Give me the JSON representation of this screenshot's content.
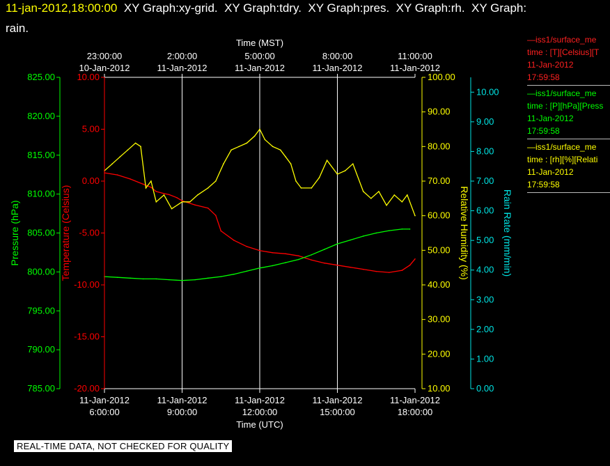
{
  "header": {
    "timestamp": "11-jan-2012,18:00:00",
    "title_rest": "  XY Graph:xy-grid.  XY Graph:tdry.  XY Graph:pres.  XY Graph:rh.  XY Graph:",
    "title_line2": "rain."
  },
  "colors": {
    "temperature": "#ff0000",
    "pressure": "#00ff00",
    "rh": "#ffff00",
    "rain": "#00e5e5",
    "grid": "#ffffff",
    "background": "#000000"
  },
  "legend": [
    {
      "color": "#ff2020",
      "lines": [
        "—iss1/surface_me",
        "time : [T][Celsius][T",
        "11-Jan-2012",
        "17:59:58"
      ]
    },
    {
      "color": "#00ff00",
      "lines": [
        "—iss1/surface_me",
        "time : [P][hPa][Press",
        "11-Jan-2012",
        "17:59:58"
      ]
    },
    {
      "color": "#ffff00",
      "lines": [
        "—iss1/surface_me",
        "time : [rh][%][Relati",
        "11-Jan-2012",
        "17:59:58"
      ]
    }
  ],
  "notice": "REAL-TIME DATA, NOT CHECKED FOR QUALITY",
  "chart_data": {
    "type": "line",
    "grid": true,
    "x_top_label": "Time (MST)",
    "x_bottom_label": "Time (UTC)",
    "x_range_utc_hours": [
      6,
      18
    ],
    "x_top_ticks": [
      {
        "time": "23:00:00",
        "date": "10-Jan-2012"
      },
      {
        "time": "2:00:00",
        "date": "11-Jan-2012"
      },
      {
        "time": "5:00:00",
        "date": "11-Jan-2012"
      },
      {
        "time": "8:00:00",
        "date": "11-Jan-2012"
      },
      {
        "time": "11:00:00",
        "date": "11-Jan-2012"
      }
    ],
    "x_bottom_ticks": [
      {
        "date": "11-Jan-2012",
        "time": "6:00:00"
      },
      {
        "date": "11-Jan-2012",
        "time": "9:00:00"
      },
      {
        "date": "11-Jan-2012",
        "time": "12:00:00"
      },
      {
        "date": "11-Jan-2012",
        "time": "15:00:00"
      },
      {
        "date": "11-Jan-2012",
        "time": "18:00:00"
      }
    ],
    "axes": {
      "pressure": {
        "label": "Pressure (hPa)",
        "range": [
          785,
          825
        ],
        "ticks": [
          "785.00",
          "790.00",
          "795.00",
          "800.00",
          "805.00",
          "810.00",
          "815.00",
          "820.00",
          "825.00"
        ]
      },
      "temperature": {
        "label": "Temperature (Celsius)",
        "range": [
          -20,
          10
        ],
        "ticks": [
          "-20.00",
          "-15.00",
          "-10.00",
          "-5.00",
          "0.00",
          "5.00",
          "10.00"
        ]
      },
      "rh": {
        "label": "Relative Humidity (%)",
        "range": [
          10,
          100
        ],
        "ticks": [
          "10.00",
          "20.00",
          "30.00",
          "40.00",
          "50.00",
          "60.00",
          "70.00",
          "80.00",
          "90.00",
          "100.00"
        ]
      },
      "rain": {
        "label": "Rain Rate (mm/min)",
        "range": [
          0,
          10.5
        ],
        "ticks": [
          "0.00",
          "1.00",
          "2.00",
          "3.00",
          "4.00",
          "5.00",
          "6.00",
          "7.00",
          "8.00",
          "9.00",
          "10.00"
        ]
      }
    },
    "series": [
      {
        "axis": "temperature",
        "x": [
          6.0,
          6.5,
          7.0,
          7.5,
          7.8,
          8.0,
          8.3,
          8.5,
          8.8,
          9.0,
          9.5,
          10.0,
          10.3,
          10.5,
          11.0,
          11.5,
          12.0,
          12.5,
          13.0,
          13.5,
          14.0,
          14.5,
          15.0,
          15.5,
          16.0,
          16.5,
          17.0,
          17.5,
          17.8,
          18.0
        ],
        "y": [
          0.8,
          0.6,
          0.2,
          -0.3,
          -0.6,
          -1.0,
          -1.2,
          -1.3,
          -1.6,
          -1.9,
          -2.3,
          -2.6,
          -3.3,
          -4.8,
          -5.7,
          -6.3,
          -6.7,
          -6.9,
          -7.0,
          -7.2,
          -7.6,
          -7.9,
          -8.1,
          -8.3,
          -8.5,
          -8.7,
          -8.8,
          -8.6,
          -8.1,
          -7.5
        ]
      },
      {
        "axis": "pressure",
        "x": [
          6.0,
          6.5,
          7.0,
          7.5,
          8.0,
          8.5,
          9.0,
          9.5,
          10.0,
          10.5,
          11.0,
          11.5,
          12.0,
          12.5,
          13.0,
          13.5,
          14.0,
          14.5,
          15.0,
          15.5,
          16.0,
          16.5,
          17.0,
          17.5,
          17.8
        ],
        "y": [
          799.4,
          799.3,
          799.2,
          799.1,
          799.1,
          799.0,
          798.9,
          799.0,
          799.2,
          799.4,
          799.7,
          800.1,
          800.5,
          800.8,
          801.2,
          801.6,
          802.2,
          802.9,
          803.6,
          804.1,
          804.6,
          805.0,
          805.3,
          805.5,
          805.5
        ]
      },
      {
        "axis": "rh",
        "x": [
          6.0,
          6.3,
          6.6,
          6.9,
          7.2,
          7.4,
          7.6,
          7.8,
          8.0,
          8.3,
          8.6,
          9.0,
          9.3,
          9.6,
          10.0,
          10.3,
          10.6,
          10.9,
          11.2,
          11.5,
          11.8,
          12.0,
          12.2,
          12.5,
          12.8,
          13.0,
          13.2,
          13.4,
          13.6,
          14.0,
          14.3,
          14.6,
          15.0,
          15.3,
          15.6,
          16.0,
          16.3,
          16.6,
          16.9,
          17.2,
          17.5,
          17.7,
          18.0
        ],
        "y": [
          73,
          75,
          77,
          79,
          81,
          80,
          68,
          70,
          64,
          66,
          62,
          64,
          64,
          66,
          68,
          70,
          75,
          79,
          80,
          81,
          83,
          85,
          82,
          80,
          79,
          77,
          75,
          70,
          68,
          68,
          71,
          76,
          72,
          73,
          75,
          67,
          65,
          67,
          63,
          66,
          64,
          66,
          60
        ]
      }
    ]
  }
}
